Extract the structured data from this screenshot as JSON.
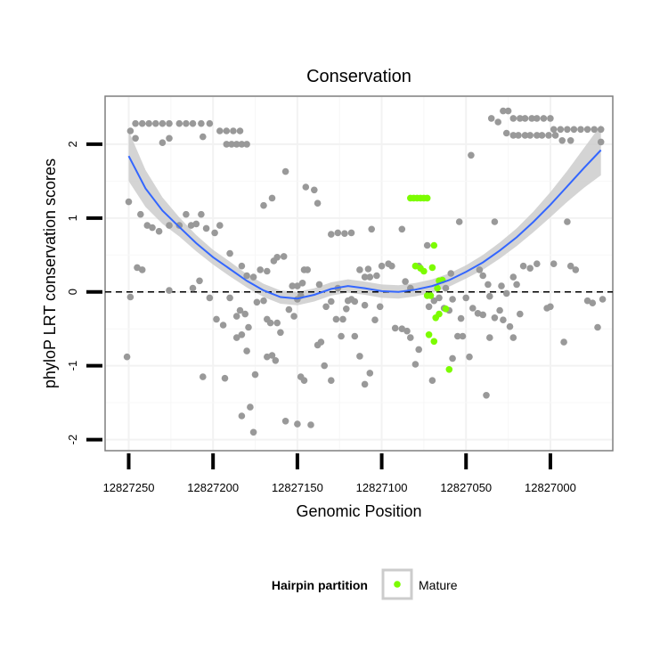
{
  "chart_data": {
    "type": "scatter",
    "title": "Conservation",
    "xlabel": "Genomic Position",
    "ylabel": "phyloP LRT conservation scores",
    "x_reversed": true,
    "xlim": [
      12827264,
      12826963
    ],
    "ylim": [
      -2.15,
      2.65
    ],
    "x_ticks": [
      12827250,
      12827200,
      12827150,
      12827100,
      12827050,
      12827000
    ],
    "x_tick_labels": [
      "12827250",
      "12827200",
      "12827150",
      "12827100",
      "12827050",
      "12827000"
    ],
    "y_ticks": [
      -2,
      -1,
      0,
      1,
      2
    ],
    "y_tick_labels": [
      "-2",
      "-1",
      "0",
      "1",
      "2"
    ],
    "reference_line": {
      "y": 0,
      "style": "dashed"
    },
    "grid": true,
    "legend": {
      "title": "Hairpin partition",
      "position": "bottom",
      "entries": [
        {
          "label": "Mature",
          "color": "#7cfc00"
        }
      ]
    },
    "colors": {
      "background_points": "#999999",
      "mature_points": "#7cfc00",
      "smooth_line": "#3366ff",
      "ci_band": "#cccccc"
    },
    "smooth": {
      "x": [
        12827250,
        12827240,
        12827230,
        12827220,
        12827210,
        12827200,
        12827190,
        12827180,
        12827170,
        12827160,
        12827150,
        12827140,
        12827130,
        12827120,
        12827110,
        12827100,
        12827090,
        12827080,
        12827070,
        12827060,
        12827050,
        12827040,
        12827030,
        12827020,
        12827010,
        12827000,
        12826990,
        12826980,
        12826970
      ],
      "y": [
        1.84,
        1.4,
        1.1,
        0.88,
        0.66,
        0.47,
        0.31,
        0.15,
        0.02,
        -0.07,
        -0.09,
        -0.04,
        0.04,
        0.08,
        0.05,
        0.01,
        0.0,
        0.03,
        0.08,
        0.16,
        0.27,
        0.4,
        0.56,
        0.74,
        0.95,
        1.18,
        1.43,
        1.68,
        1.92
      ],
      "ci_half_width": [
        0.34,
        0.25,
        0.18,
        0.13,
        0.11,
        0.1,
        0.1,
        0.09,
        0.09,
        0.09,
        0.09,
        0.09,
        0.09,
        0.09,
        0.09,
        0.09,
        0.09,
        0.09,
        0.09,
        0.09,
        0.09,
        0.1,
        0.11,
        0.12,
        0.14,
        0.17,
        0.21,
        0.27,
        0.34
      ]
    },
    "series": [
      {
        "name": "Other",
        "color": "#999999",
        "points": [
          [
            12827249,
            2.18
          ],
          [
            12827246,
            2.28
          ],
          [
            12827242,
            2.28
          ],
          [
            12827238,
            2.28
          ],
          [
            12827234,
            2.28
          ],
          [
            12827230,
            2.28
          ],
          [
            12827226,
            2.28
          ],
          [
            12827220,
            2.28
          ],
          [
            12827216,
            2.28
          ],
          [
            12827212,
            2.28
          ],
          [
            12827207,
            2.28
          ],
          [
            12827202,
            2.28
          ],
          [
            12827196,
            2.18
          ],
          [
            12827192,
            2.18
          ],
          [
            12827188,
            2.18
          ],
          [
            12827184,
            2.18
          ],
          [
            12827192,
            2.0
          ],
          [
            12827189,
            2.0
          ],
          [
            12827186,
            2.0
          ],
          [
            12827183,
            2.0
          ],
          [
            12827180,
            2.0
          ],
          [
            12827246,
            2.08
          ],
          [
            12827230,
            2.02
          ],
          [
            12827226,
            2.08
          ],
          [
            12827206,
            2.1
          ],
          [
            12827250,
            1.22
          ],
          [
            12827243,
            1.05
          ],
          [
            12827239,
            0.9
          ],
          [
            12827236,
            0.87
          ],
          [
            12827232,
            0.82
          ],
          [
            12827226,
            0.9
          ],
          [
            12827220,
            0.9
          ],
          [
            12827216,
            1.05
          ],
          [
            12827213,
            0.9
          ],
          [
            12827210,
            0.92
          ],
          [
            12827207,
            1.05
          ],
          [
            12827204,
            0.86
          ],
          [
            12827199,
            0.8
          ],
          [
            12827196,
            0.9
          ],
          [
            12827245,
            0.33
          ],
          [
            12827242,
            0.3
          ],
          [
            12827226,
            0.02
          ],
          [
            12827212,
            0.05
          ],
          [
            12827208,
            0.15
          ],
          [
            12827190,
            0.52
          ],
          [
            12827183,
            0.35
          ],
          [
            12827180,
            0.22
          ],
          [
            12827176,
            0.2
          ],
          [
            12827172,
            0.3
          ],
          [
            12827168,
            0.28
          ],
          [
            12827164,
            0.42
          ],
          [
            12827162,
            0.47
          ],
          [
            12827158,
            0.48
          ],
          [
            12827153,
            0.08
          ],
          [
            12827150,
            0.08
          ],
          [
            12827147,
            0.12
          ],
          [
            12827249,
            -0.07
          ],
          [
            12827251,
            -0.88
          ],
          [
            12827202,
            -0.08
          ],
          [
            12827198,
            -0.37
          ],
          [
            12827194,
            -0.45
          ],
          [
            12827190,
            -0.08
          ],
          [
            12827186,
            -0.33
          ],
          [
            12827184,
            -0.25
          ],
          [
            12827181,
            -0.3
          ],
          [
            12827179,
            -0.48
          ],
          [
            12827174,
            -0.14
          ],
          [
            12827170,
            -0.12
          ],
          [
            12827168,
            -0.37
          ],
          [
            12827166,
            -0.42
          ],
          [
            12827162,
            -0.42
          ],
          [
            12827160,
            -0.55
          ],
          [
            12827155,
            -0.24
          ],
          [
            12827152,
            -0.33
          ],
          [
            12827150,
            -0.1
          ],
          [
            12827186,
            -0.62
          ],
          [
            12827183,
            -0.58
          ],
          [
            12827180,
            -0.8
          ],
          [
            12827175,
            -1.12
          ],
          [
            12827168,
            -0.88
          ],
          [
            12827165,
            -0.86
          ],
          [
            12827163,
            -0.93
          ],
          [
            12827157,
            -1.75
          ],
          [
            12827150,
            -1.79
          ],
          [
            12827148,
            -1.15
          ],
          [
            12827206,
            -1.15
          ],
          [
            12827193,
            -1.17
          ],
          [
            12827183,
            -1.68
          ],
          [
            12827178,
            -1.56
          ],
          [
            12827176,
            -1.9
          ],
          [
            12827170,
            1.17
          ],
          [
            12827165,
            1.27
          ],
          [
            12827157,
            1.63
          ],
          [
            12827145,
            1.42
          ],
          [
            12827140,
            1.38
          ],
          [
            12827138,
            1.2
          ],
          [
            12827130,
            0.78
          ],
          [
            12827126,
            0.8
          ],
          [
            12827122,
            0.79
          ],
          [
            12827118,
            0.8
          ],
          [
            12827106,
            0.85
          ],
          [
            12827148,
            -0.05
          ],
          [
            12827146,
            0.3
          ],
          [
            12827144,
            0.3
          ],
          [
            12827137,
            0.1
          ],
          [
            12827133,
            -0.2
          ],
          [
            12827130,
            -0.13
          ],
          [
            12827126,
            0.05
          ],
          [
            12827123,
            -0.37
          ],
          [
            12827121,
            -0.23
          ],
          [
            12827118,
            -0.1
          ],
          [
            12827116,
            -0.13
          ],
          [
            12827110,
            -0.18
          ],
          [
            12827108,
            0.31
          ],
          [
            12827138,
            -0.72
          ],
          [
            12827136,
            -0.68
          ],
          [
            12827134,
            -1.0
          ],
          [
            12827130,
            -1.2
          ],
          [
            12827127,
            -0.37
          ],
          [
            12827124,
            -0.6
          ],
          [
            12827120,
            -0.12
          ],
          [
            12827116,
            -0.6
          ],
          [
            12827113,
            -0.87
          ],
          [
            12827110,
            -1.25
          ],
          [
            12827107,
            -1.1
          ],
          [
            12827104,
            -0.38
          ],
          [
            12827101,
            -0.2
          ],
          [
            12827142,
            -1.8
          ],
          [
            12827146,
            -1.2
          ],
          [
            12827113,
            0.3
          ],
          [
            12827110,
            0.2
          ],
          [
            12827107,
            0.2
          ],
          [
            12827103,
            0.22
          ],
          [
            12827100,
            0.35
          ],
          [
            12827096,
            0.38
          ],
          [
            12827094,
            0.35
          ],
          [
            12827088,
            0.85
          ],
          [
            12827086,
            0.14
          ],
          [
            12827083,
            0.05
          ],
          [
            12827078,
            0.35
          ],
          [
            12827073,
            0.63
          ],
          [
            12827092,
            -0.49
          ],
          [
            12827088,
            -0.5
          ],
          [
            12827085,
            -0.53
          ],
          [
            12827083,
            -0.62
          ],
          [
            12827078,
            -0.78
          ],
          [
            12827072,
            -0.2
          ],
          [
            12827069,
            -0.12
          ],
          [
            12827066,
            -0.08
          ],
          [
            12827063,
            -0.22
          ],
          [
            12827060,
            -0.25
          ],
          [
            12827058,
            -0.1
          ],
          [
            12827055,
            -0.6
          ],
          [
            12827053,
            -0.36
          ],
          [
            12827080,
            -0.98
          ],
          [
            12827070,
            -1.2
          ],
          [
            12827058,
            -0.9
          ],
          [
            12827052,
            -0.6
          ],
          [
            12827048,
            -0.88
          ],
          [
            12827038,
            -1.4
          ],
          [
            12827036,
            -0.62
          ],
          [
            12827062,
            0.05
          ],
          [
            12827059,
            0.25
          ],
          [
            12827054,
            0.95
          ],
          [
            12827047,
            1.85
          ],
          [
            12827042,
            0.3
          ],
          [
            12827040,
            0.22
          ],
          [
            12827037,
            0.1
          ],
          [
            12827033,
            0.95
          ],
          [
            12827029,
            0.08
          ],
          [
            12827026,
            -0.02
          ],
          [
            12827050,
            -0.08
          ],
          [
            12827046,
            -0.22
          ],
          [
            12827043,
            -0.29
          ],
          [
            12827040,
            -0.31
          ],
          [
            12827036,
            -0.06
          ],
          [
            12827033,
            -0.35
          ],
          [
            12827030,
            -0.25
          ],
          [
            12827028,
            -0.38
          ],
          [
            12827024,
            -0.47
          ],
          [
            12827022,
            -0.62
          ],
          [
            12827018,
            -0.3
          ],
          [
            12827022,
            0.2
          ],
          [
            12827020,
            0.1
          ],
          [
            12827016,
            0.35
          ],
          [
            12827012,
            0.32
          ],
          [
            12827008,
            0.38
          ],
          [
            12827002,
            -0.22
          ],
          [
            12827000,
            -0.2
          ],
          [
            12826998,
            0.38
          ],
          [
            12826992,
            -0.68
          ],
          [
            12826990,
            0.95
          ],
          [
            12826988,
            0.35
          ],
          [
            12826985,
            0.3
          ],
          [
            12826978,
            -0.12
          ],
          [
            12826975,
            -0.15
          ],
          [
            12826972,
            -0.48
          ],
          [
            12826969,
            -0.1
          ],
          [
            12827035,
            2.35
          ],
          [
            12827031,
            2.3
          ],
          [
            12827028,
            2.45
          ],
          [
            12827025,
            2.45
          ],
          [
            12827022,
            2.35
          ],
          [
            12827018,
            2.35
          ],
          [
            12827015,
            2.35
          ],
          [
            12827011,
            2.35
          ],
          [
            12827008,
            2.35
          ],
          [
            12827004,
            2.35
          ],
          [
            12827000,
            2.35
          ],
          [
            12827026,
            2.15
          ],
          [
            12827022,
            2.12
          ],
          [
            12827019,
            2.12
          ],
          [
            12827015,
            2.12
          ],
          [
            12827012,
            2.12
          ],
          [
            12827008,
            2.12
          ],
          [
            12827005,
            2.12
          ],
          [
            12827001,
            2.12
          ],
          [
            12826997,
            2.12
          ],
          [
            12826998,
            2.2
          ],
          [
            12826994,
            2.2
          ],
          [
            12826990,
            2.2
          ],
          [
            12826986,
            2.2
          ],
          [
            12826982,
            2.2
          ],
          [
            12826978,
            2.2
          ],
          [
            12826974,
            2.2
          ],
          [
            12826970,
            2.2
          ],
          [
            12826993,
            2.05
          ],
          [
            12826988,
            2.05
          ],
          [
            12826970,
            2.03
          ]
        ]
      },
      {
        "name": "Mature",
        "color": "#7cfc00",
        "points": [
          [
            12827083,
            1.27
          ],
          [
            12827081,
            1.27
          ],
          [
            12827079,
            1.27
          ],
          [
            12827077,
            1.27
          ],
          [
            12827075,
            1.27
          ],
          [
            12827073,
            1.27
          ],
          [
            12827080,
            0.35
          ],
          [
            12827077,
            0.32
          ],
          [
            12827075,
            0.28
          ],
          [
            12827070,
            0.33
          ],
          [
            12827069,
            0.63
          ],
          [
            12827066,
            0.15
          ],
          [
            12827064,
            0.16
          ],
          [
            12827073,
            -0.05
          ],
          [
            12827071,
            -0.05
          ],
          [
            12827067,
            0.05
          ],
          [
            12827072,
            -0.58
          ],
          [
            12827069,
            -0.67
          ],
          [
            12827066,
            -0.3
          ],
          [
            12827068,
            -0.35
          ],
          [
            12827062,
            -0.23
          ],
          [
            12827060,
            -1.05
          ]
        ]
      }
    ]
  }
}
